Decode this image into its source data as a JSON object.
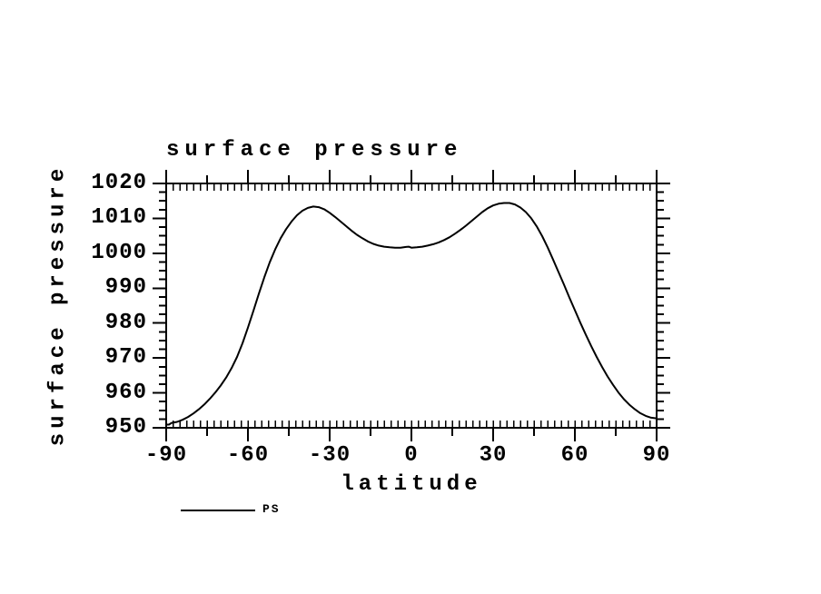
{
  "title": "surface pressure",
  "colors": {
    "line": "#000000",
    "axis": "#000000",
    "background": "#ffffff",
    "text": "#000000"
  },
  "chart_data": {
    "type": "line",
    "title": "surface pressure",
    "xlabel": "latitude",
    "ylabel": "surface pressure",
    "xlim": [
      -90,
      90
    ],
    "ylim": [
      950,
      1020
    ],
    "grid": false,
    "xticks_major": [
      -90,
      -60,
      -30,
      0,
      30,
      60,
      90
    ],
    "xtick_labels": [
      "-90",
      "-60",
      "-30",
      "0",
      "30",
      "60",
      "90"
    ],
    "x_medium_tick_step": 15,
    "x_minor_tick_step": 2.5,
    "yticks_major": [
      950,
      960,
      970,
      980,
      990,
      1000,
      1010,
      1020
    ],
    "ytick_labels": [
      "1020",
      "1010",
      "1000",
      "990",
      "980",
      "970",
      "960",
      "950"
    ],
    "y_minor_tick_step": 2.5,
    "legend": {
      "position": "bottom-left",
      "entries": [
        {
          "label": "PS",
          "line_color": "#000000"
        }
      ]
    },
    "series": [
      {
        "name": "PS",
        "points": [
          [
            -90,
            950.9
          ],
          [
            -89,
            950.9
          ],
          [
            -88,
            951.4
          ],
          [
            -86,
            951.7
          ],
          [
            -84,
            952.3
          ],
          [
            -82,
            953.1
          ],
          [
            -80,
            954.1
          ],
          [
            -78,
            955.3
          ],
          [
            -76,
            956.7
          ],
          [
            -74,
            958.3
          ],
          [
            -72,
            960.1
          ],
          [
            -70,
            962.1
          ],
          [
            -68,
            964.4
          ],
          [
            -66,
            967.1
          ],
          [
            -64,
            970.3
          ],
          [
            -62,
            974.2
          ],
          [
            -60,
            978.7
          ],
          [
            -58,
            983.5
          ],
          [
            -56,
            988.4
          ],
          [
            -54,
            993.1
          ],
          [
            -52,
            997.4
          ],
          [
            -50,
            1001.1
          ],
          [
            -48,
            1004.3
          ],
          [
            -46,
            1006.9
          ],
          [
            -44,
            1009.1
          ],
          [
            -42,
            1010.9
          ],
          [
            -40,
            1012.2
          ],
          [
            -38,
            1013.0
          ],
          [
            -36,
            1013.4
          ],
          [
            -34,
            1013.2
          ],
          [
            -32,
            1012.6
          ],
          [
            -30,
            1011.6
          ],
          [
            -28,
            1010.4
          ],
          [
            -26,
            1009.1
          ],
          [
            -24,
            1007.8
          ],
          [
            -22,
            1006.5
          ],
          [
            -20,
            1005.3
          ],
          [
            -18,
            1004.3
          ],
          [
            -16,
            1003.4
          ],
          [
            -14,
            1002.7
          ],
          [
            -12,
            1002.2
          ],
          [
            -10,
            1001.9
          ],
          [
            -8,
            1001.7
          ],
          [
            -6,
            1001.6
          ],
          [
            -4,
            1001.6
          ],
          [
            -2,
            1001.8
          ],
          [
            -1,
            1001.9
          ],
          [
            0,
            1001.6
          ],
          [
            2,
            1001.7
          ],
          [
            4,
            1001.9
          ],
          [
            6,
            1002.2
          ],
          [
            8,
            1002.6
          ],
          [
            10,
            1003.1
          ],
          [
            12,
            1003.8
          ],
          [
            14,
            1004.6
          ],
          [
            16,
            1005.6
          ],
          [
            18,
            1006.7
          ],
          [
            20,
            1007.9
          ],
          [
            22,
            1009.2
          ],
          [
            24,
            1010.5
          ],
          [
            26,
            1011.8
          ],
          [
            28,
            1012.9
          ],
          [
            30,
            1013.7
          ],
          [
            32,
            1014.2
          ],
          [
            34,
            1014.4
          ],
          [
            36,
            1014.4
          ],
          [
            38,
            1014.0
          ],
          [
            40,
            1013.1
          ],
          [
            42,
            1011.8
          ],
          [
            44,
            1010.0
          ],
          [
            46,
            1007.7
          ],
          [
            48,
            1004.9
          ],
          [
            50,
            1001.7
          ],
          [
            52,
            998.2
          ],
          [
            54,
            994.6
          ],
          [
            56,
            991.0
          ],
          [
            58,
            987.3
          ],
          [
            60,
            983.7
          ],
          [
            62,
            980.1
          ],
          [
            64,
            976.7
          ],
          [
            66,
            973.4
          ],
          [
            68,
            970.3
          ],
          [
            70,
            967.4
          ],
          [
            72,
            964.7
          ],
          [
            74,
            962.3
          ],
          [
            76,
            960.1
          ],
          [
            78,
            958.2
          ],
          [
            80,
            956.6
          ],
          [
            82,
            955.3
          ],
          [
            84,
            954.2
          ],
          [
            86,
            953.4
          ],
          [
            88,
            952.9
          ],
          [
            90,
            952.7
          ]
        ]
      }
    ]
  }
}
